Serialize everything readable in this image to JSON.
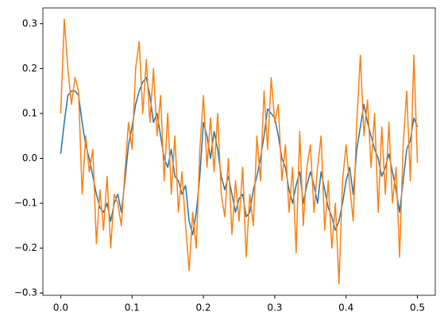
{
  "chart_data": {
    "type": "line",
    "x": [
      0,
      0.005,
      0.01,
      0.015,
      0.02,
      0.025,
      0.03,
      0.035,
      0.04,
      0.045,
      0.05,
      0.055,
      0.06,
      0.065,
      0.07,
      0.075,
      0.08,
      0.085,
      0.09,
      0.095,
      0.1,
      0.105,
      0.11,
      0.115,
      0.12,
      0.125,
      0.13,
      0.135,
      0.14,
      0.145,
      0.15,
      0.155,
      0.16,
      0.165,
      0.17,
      0.175,
      0.18,
      0.185,
      0.19,
      0.195,
      0.2,
      0.205,
      0.21,
      0.215,
      0.22,
      0.225,
      0.23,
      0.235,
      0.24,
      0.245,
      0.25,
      0.255,
      0.26,
      0.265,
      0.27,
      0.275,
      0.28,
      0.285,
      0.29,
      0.295,
      0.3,
      0.305,
      0.31,
      0.315,
      0.32,
      0.325,
      0.33,
      0.335,
      0.34,
      0.345,
      0.35,
      0.355,
      0.36,
      0.365,
      0.37,
      0.375,
      0.38,
      0.385,
      0.39,
      0.395,
      0.4,
      0.405,
      0.41,
      0.415,
      0.42,
      0.425,
      0.43,
      0.435,
      0.44,
      0.445,
      0.45,
      0.455,
      0.46,
      0.465,
      0.47,
      0.475,
      0.48,
      0.485,
      0.49,
      0.495,
      0.5
    ],
    "series": [
      {
        "color": "#1f77b4",
        "values": [
          0.01,
          0.08,
          0.14,
          0.15,
          0.15,
          0.14,
          0.08,
          0.03,
          0.0,
          -0.04,
          -0.08,
          -0.11,
          -0.12,
          -0.1,
          -0.14,
          -0.1,
          -0.08,
          -0.12,
          -0.05,
          0.03,
          0.07,
          0.12,
          0.15,
          0.17,
          0.18,
          0.14,
          0.08,
          0.1,
          0.05,
          0.0,
          -0.02,
          0.02,
          -0.04,
          -0.05,
          -0.08,
          -0.06,
          -0.14,
          -0.17,
          -0.12,
          -0.04,
          0.08,
          0.05,
          0.0,
          0.06,
          0.02,
          -0.04,
          -0.07,
          -0.04,
          -0.08,
          -0.12,
          -0.09,
          -0.08,
          -0.13,
          -0.12,
          -0.07,
          -0.04,
          0.0,
          0.05,
          0.11,
          0.1,
          0.09,
          0.05,
          0.0,
          -0.02,
          -0.07,
          -0.1,
          -0.06,
          -0.03,
          -0.1,
          -0.06,
          -0.03,
          -0.06,
          -0.1,
          -0.03,
          -0.07,
          -0.11,
          -0.13,
          -0.16,
          -0.14,
          -0.1,
          -0.05,
          -0.02,
          -0.08,
          0.02,
          0.07,
          0.12,
          0.08,
          0.05,
          0.02,
          0.0,
          -0.04,
          -0.02,
          0.01,
          -0.03,
          -0.07,
          -0.12,
          -0.05,
          0.02,
          0.04,
          0.09,
          0.07
        ]
      },
      {
        "color": "#ff7f0e",
        "values": [
          0.1,
          0.31,
          0.2,
          0.12,
          0.18,
          0.15,
          -0.08,
          0.05,
          -0.03,
          0.02,
          -0.19,
          -0.07,
          -0.16,
          -0.04,
          -0.2,
          -0.08,
          -0.1,
          -0.15,
          -0.03,
          0.08,
          0.02,
          0.2,
          0.26,
          0.1,
          0.22,
          0.08,
          0.2,
          0.05,
          0.14,
          -0.05,
          0.1,
          -0.08,
          0.05,
          -0.12,
          -0.03,
          -0.15,
          -0.25,
          -0.12,
          -0.2,
          0.02,
          0.14,
          -0.02,
          0.09,
          -0.03,
          0.1,
          -0.08,
          -0.13,
          0.0,
          -0.17,
          -0.05,
          -0.14,
          -0.02,
          -0.22,
          -0.08,
          -0.15,
          0.05,
          -0.05,
          0.15,
          0.02,
          0.18,
          0.08,
          0.12,
          -0.05,
          0.03,
          -0.12,
          -0.02,
          -0.21,
          0.06,
          -0.15,
          -0.02,
          0.03,
          -0.12,
          -0.02,
          0.05,
          -0.16,
          -0.05,
          -0.2,
          -0.1,
          -0.28,
          -0.05,
          0.03,
          -0.06,
          -0.14,
          0.08,
          0.23,
          0.05,
          0.13,
          -0.02,
          0.1,
          -0.12,
          0.07,
          -0.08,
          0.08,
          -0.1,
          -0.02,
          -0.22,
          0.03,
          0.15,
          -0.05,
          0.23,
          -0.01
        ]
      }
    ],
    "xlim": [
      -0.025,
      0.525
    ],
    "ylim": [
      -0.305,
      0.335
    ],
    "xticks": [
      {
        "value": 0,
        "label": "0.0"
      },
      0.1,
      0.2,
      0.3,
      0.4,
      0.5
    ],
    "yticks": [
      {
        "value": -0.3,
        "label": "−0.3"
      },
      {
        "value": -0.2,
        "label": "−0.2"
      },
      {
        "value": -0.1,
        "label": "−0.1"
      },
      {
        "value": 0,
        "label": "0.0"
      },
      0.1,
      0.2,
      0.3
    ],
    "grid": false
  }
}
